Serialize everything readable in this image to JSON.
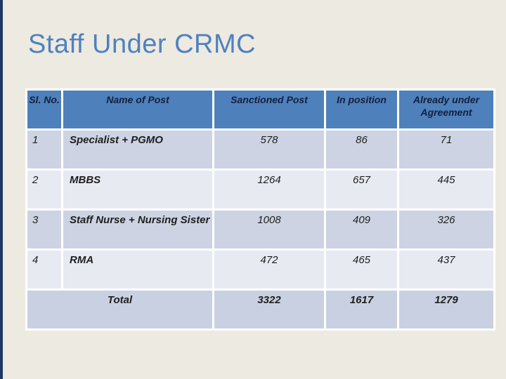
{
  "slide": {
    "title": "Staff Under CRMC",
    "background_color": "#EDEAE1",
    "title_color": "#5081BE",
    "left_bar_color": "#1F3864"
  },
  "table": {
    "header_bg_color": "#4E80BC",
    "row_odd_color": "#CDD3E2",
    "row_even_color": "#E8EAF2",
    "total_row_color": "#C9D0E1",
    "headers": [
      "Sl. No.",
      "Name of Post",
      "Sanctioned Post",
      "In position",
      "Already under Agreement"
    ],
    "rows": [
      {
        "sl": "1",
        "name": "Specialist + PGMO",
        "sanctioned": "578",
        "in_position": "86",
        "agreement": "71"
      },
      {
        "sl": "2",
        "name": "MBBS",
        "sanctioned": "1264",
        "in_position": "657",
        "agreement": "445"
      },
      {
        "sl": "3",
        "name": "Staff Nurse + Nursing Sister",
        "sanctioned": "1008",
        "in_position": "409",
        "agreement": "326"
      },
      {
        "sl": "4",
        "name": "RMA",
        "sanctioned": "472",
        "in_position": "465",
        "agreement": "437"
      }
    ],
    "total": {
      "label": "Total",
      "sanctioned": "3322",
      "in_position": "1617",
      "agreement": "1279"
    }
  },
  "chart_data": {
    "type": "table",
    "title": "Staff Under CRMC",
    "columns": [
      "Sl. No.",
      "Name of Post",
      "Sanctioned Post",
      "In position",
      "Already under Agreement"
    ],
    "rows": [
      [
        "1",
        "Specialist + PGMO",
        578,
        86,
        71
      ],
      [
        "2",
        "MBBS",
        1264,
        657,
        445
      ],
      [
        "3",
        "Staff Nurse + Nursing Sister",
        1008,
        409,
        326
      ],
      [
        "4",
        "RMA",
        472,
        465,
        437
      ],
      [
        "",
        "Total",
        3322,
        1617,
        1279
      ]
    ]
  }
}
